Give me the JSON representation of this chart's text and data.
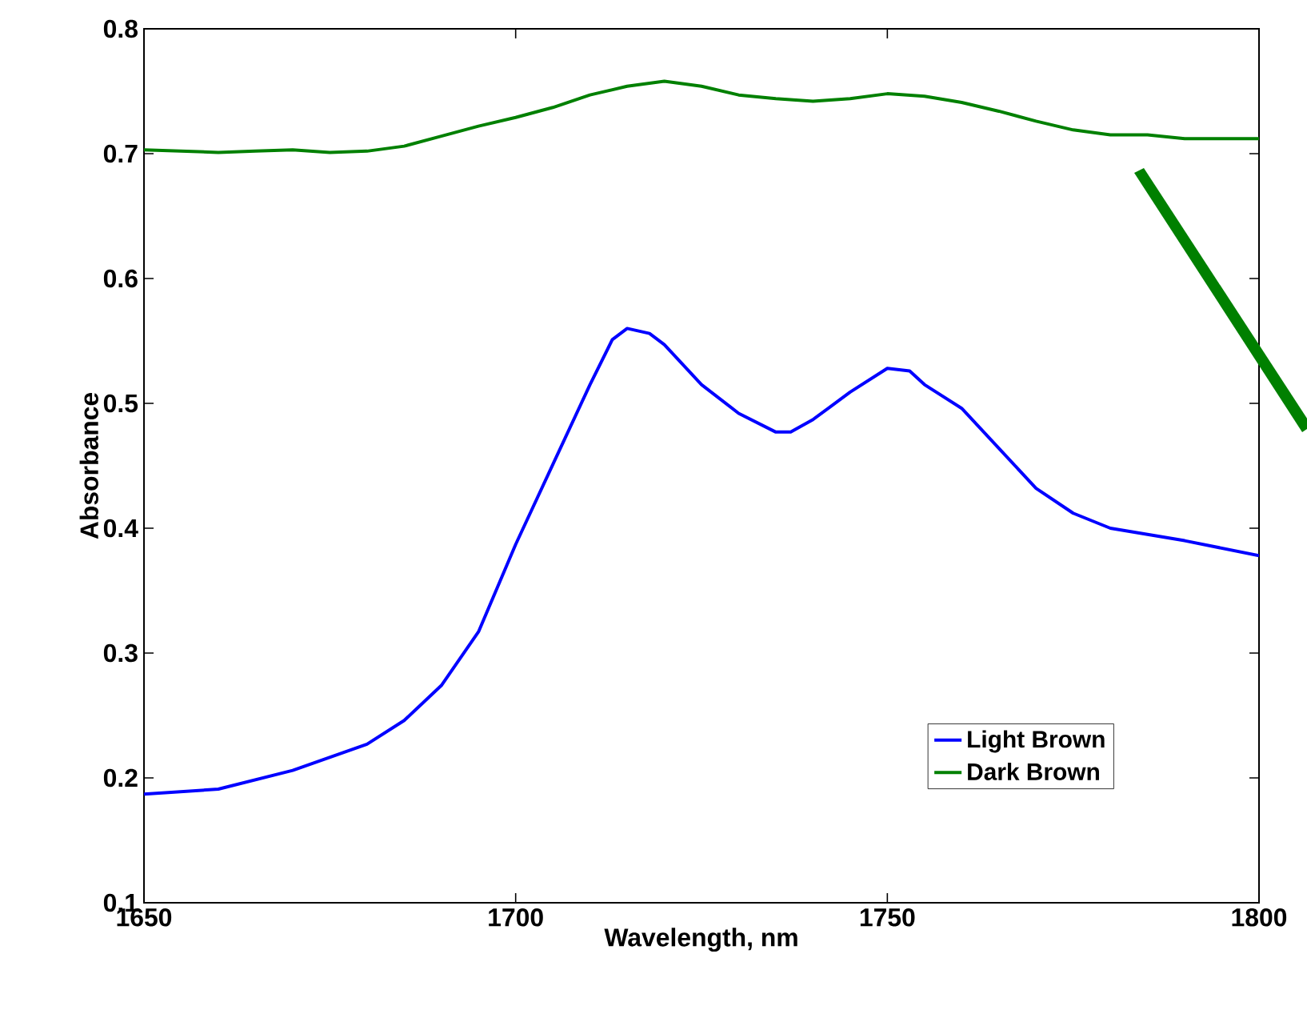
{
  "chart_data": {
    "type": "line",
    "xlabel": "Wavelength, nm",
    "ylabel": "Absorbance",
    "xlim": [
      1650,
      1800
    ],
    "ylim": [
      0.1,
      0.8
    ],
    "xticks": [
      1650,
      1700,
      1750,
      1800
    ],
    "yticks": [
      0.1,
      0.2,
      0.3,
      0.4,
      0.5,
      0.6,
      0.7,
      0.8
    ],
    "legend": "bottom right",
    "grid": false,
    "marker": "none",
    "line_style": "solid",
    "series": [
      {
        "name": "Light Brown",
        "color": "#0000ff",
        "x": [
          1650,
          1660,
          1670,
          1680,
          1685,
          1690,
          1695,
          1700,
          1705,
          1710,
          1713,
          1715,
          1718,
          1720,
          1725,
          1730,
          1735,
          1737,
          1740,
          1745,
          1750,
          1753,
          1755,
          1760,
          1765,
          1770,
          1775,
          1780,
          1790,
          1800
        ],
        "values": [
          0.187,
          0.191,
          0.206,
          0.227,
          0.246,
          0.274,
          0.317,
          0.387,
          0.451,
          0.515,
          0.551,
          0.56,
          0.556,
          0.547,
          0.515,
          0.492,
          0.477,
          0.477,
          0.487,
          0.509,
          0.528,
          0.526,
          0.515,
          0.496,
          0.464,
          0.432,
          0.412,
          0.4,
          0.39,
          0.378
        ]
      },
      {
        "name": "Dark Brown",
        "color": "#008000",
        "x": [
          1650,
          1660,
          1665,
          1670,
          1675,
          1680,
          1685,
          1690,
          1695,
          1700,
          1705,
          1710,
          1715,
          1720,
          1725,
          1730,
          1735,
          1740,
          1745,
          1750,
          1755,
          1760,
          1765,
          1770,
          1775,
          1780,
          1785,
          1790,
          1800
        ],
        "values": [
          0.703,
          0.701,
          0.702,
          0.703,
          0.701,
          0.702,
          0.706,
          0.714,
          0.722,
          0.729,
          0.737,
          0.747,
          0.754,
          0.758,
          0.754,
          0.747,
          0.744,
          0.742,
          0.744,
          0.748,
          0.746,
          0.741,
          0.734,
          0.726,
          0.719,
          0.715,
          0.715,
          0.712,
          0.712
        ]
      }
    ]
  }
}
